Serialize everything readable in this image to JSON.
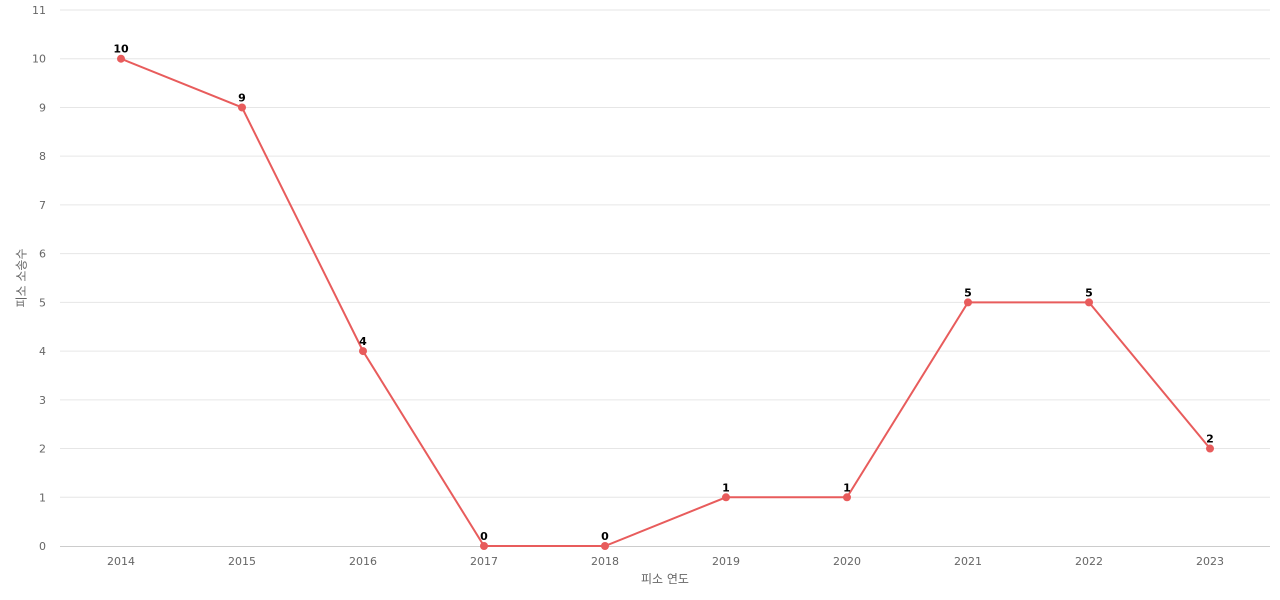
{
  "colors": {
    "series": "#e85c5c"
  },
  "chart_data": {
    "type": "line",
    "title": "",
    "xlabel": "피소 연도",
    "ylabel": "피소 소송수",
    "categories": [
      "2014",
      "2015",
      "2016",
      "2017",
      "2018",
      "2019",
      "2020",
      "2021",
      "2022",
      "2023"
    ],
    "yticks": [
      "0",
      "1",
      "2",
      "3",
      "4",
      "5",
      "6",
      "7",
      "8",
      "9",
      "10",
      "11"
    ],
    "ylim": [
      0,
      11
    ],
    "grid": true,
    "legend": "none",
    "series": [
      {
        "values": [
          10,
          9,
          4,
          0,
          0,
          1,
          1,
          5,
          5,
          2
        ],
        "data_labels": [
          "10",
          "9",
          "4",
          "0",
          "0",
          "1",
          "1",
          "5",
          "5",
          "2"
        ]
      }
    ]
  }
}
